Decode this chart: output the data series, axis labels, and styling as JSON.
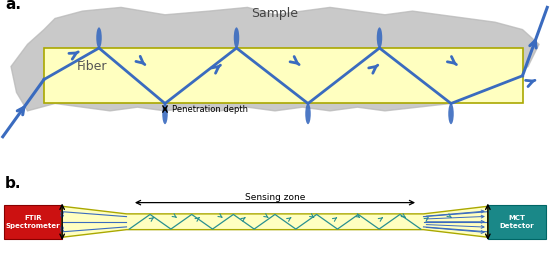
{
  "bg_color": "#ffffff",
  "gray_blob_color": "#b8b8b8",
  "fiber_fill_color": "#ffffc0",
  "fiber_edge_color": "#aaa800",
  "blue_color": "#3a6bbf",
  "red_box_color": "#cc1111",
  "teal_box_color": "#1a8888",
  "title_a": "a.",
  "title_b": "b.",
  "sample_label": "Sample",
  "fiber_label": "Fiber",
  "pen_depth_label": "Penetration depth",
  "sensing_zone_label": "Sensing zone",
  "ftir_label": "FTIR\nSpectrometer",
  "mct_label": "MCT\nDetector"
}
